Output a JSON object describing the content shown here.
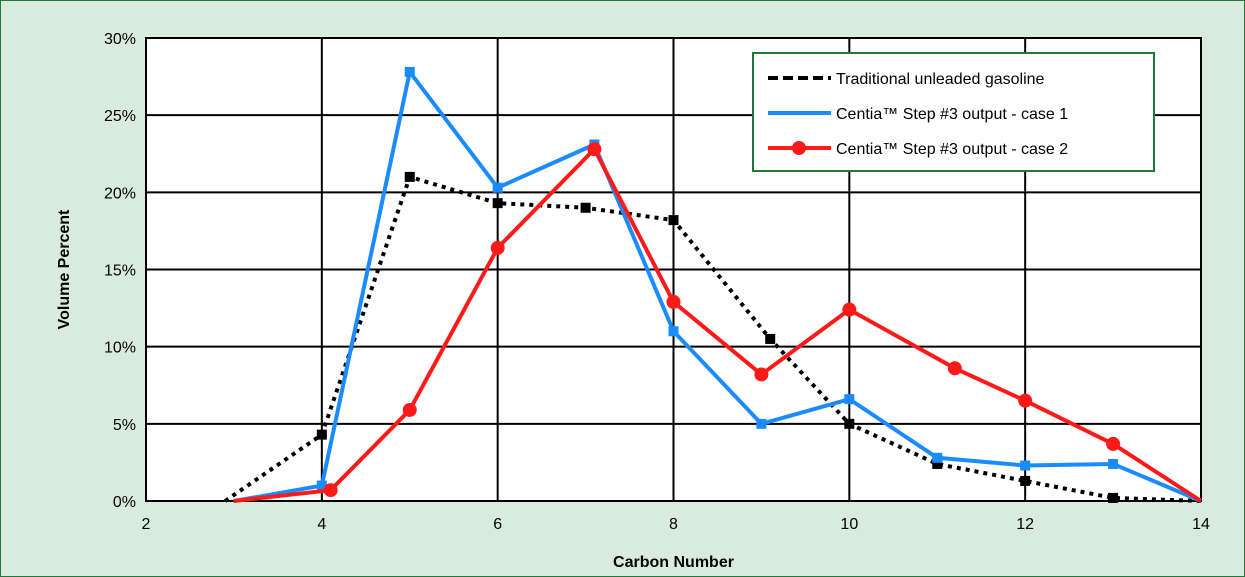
{
  "chart_data": {
    "type": "line",
    "xlabel": "Carbon Number",
    "ylabel": "Volume Percent",
    "xlim": [
      2,
      14
    ],
    "ylim": [
      0,
      30
    ],
    "xticks": [
      "2",
      "4",
      "6",
      "8",
      "10",
      "12",
      "14"
    ],
    "yticks": [
      "0%",
      "5%",
      "10%",
      "15%",
      "20%",
      "25%",
      "30%"
    ],
    "grid": true,
    "legend_position": "top-right",
    "series": [
      {
        "name": "Traditional unleaded gasoline",
        "color": "#000000",
        "style": "dotted",
        "marker": "square",
        "points": [
          [
            2.9,
            0
          ],
          [
            4,
            4.3
          ],
          [
            5,
            21
          ],
          [
            6,
            19.3
          ],
          [
            7,
            19
          ],
          [
            8,
            18.2
          ],
          [
            9.1,
            10.5
          ],
          [
            10,
            5
          ],
          [
            11,
            2.4
          ],
          [
            12,
            1.3
          ],
          [
            13,
            0.2
          ],
          [
            14,
            0
          ]
        ]
      },
      {
        "name": "Centia™ Step #3 output - case 1",
        "color": "#1a8cff",
        "style": "solid",
        "marker": "square",
        "points": [
          [
            3,
            0
          ],
          [
            4,
            1
          ],
          [
            5,
            27.8
          ],
          [
            6,
            20.3
          ],
          [
            7.1,
            23.1
          ],
          [
            8,
            11
          ],
          [
            9,
            5
          ],
          [
            10,
            6.6
          ],
          [
            11,
            2.8
          ],
          [
            12,
            2.3
          ],
          [
            13,
            2.4
          ],
          [
            14,
            0
          ]
        ]
      },
      {
        "name": "Centia™ Step #3 output - case 2",
        "color": "#ff1a1a",
        "style": "solid",
        "marker": "circle",
        "points": [
          [
            3,
            0
          ],
          [
            4.1,
            0.7
          ],
          [
            5,
            5.9
          ],
          [
            6,
            16.4
          ],
          [
            7.1,
            22.8
          ],
          [
            8,
            12.9
          ],
          [
            9,
            8.2
          ],
          [
            10,
            12.4
          ],
          [
            11.2,
            8.6
          ],
          [
            12,
            6.5
          ],
          [
            13,
            3.7
          ],
          [
            14,
            0
          ]
        ]
      }
    ]
  }
}
